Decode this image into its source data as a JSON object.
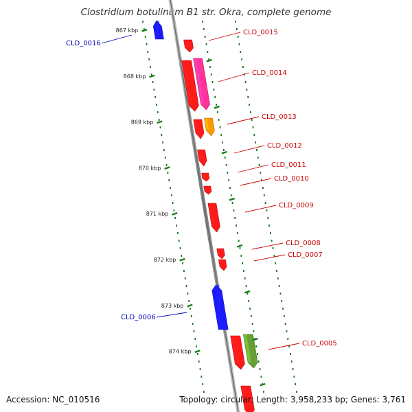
{
  "title": "Clostridium botulinum B1 str. Okra, complete genome",
  "footer": {
    "accession": "Accession: NC_010516",
    "topology": "Topology: circular; Length: 3,958,233 bp; Genes: 3,761"
  },
  "colors": {
    "backbone": "#8a8a8a",
    "tick": "#1a7a1a",
    "label_forward": "#cc0000",
    "label_reverse": "#0000bb"
  },
  "kbp_ticks": [
    "867 kbp",
    "868 kbp",
    "869 kbp",
    "870 kbp",
    "871 kbp",
    "872 kbp",
    "873 kbp",
    "874 kbp"
  ],
  "genes": [
    {
      "id": "CLD_0016",
      "strand": "reverse",
      "color": "#1a1aff"
    },
    {
      "id": "CLD_0015",
      "strand": "forward",
      "color": "#ff1a1a"
    },
    {
      "id": "CLD_0014",
      "strand": "forward",
      "color": "#ff1a1a"
    },
    {
      "id": "CLD_0014-pink",
      "strand": "forward",
      "color": "#ff3399"
    },
    {
      "id": "CLD_0013",
      "strand": "forward",
      "color": "#ff1a1a"
    },
    {
      "id": "CLD_0013-orange",
      "strand": "forward",
      "color": "#ff9900"
    },
    {
      "id": "CLD_0012",
      "strand": "forward",
      "color": "#ff1a1a"
    },
    {
      "id": "CLD_0011",
      "strand": "forward",
      "color": "#ff1a1a"
    },
    {
      "id": "CLD_0010",
      "strand": "forward",
      "color": "#ff1a1a"
    },
    {
      "id": "CLD_0009",
      "strand": "forward",
      "color": "#ff1a1a"
    },
    {
      "id": "CLD_0008",
      "strand": "forward",
      "color": "#ff1a1a"
    },
    {
      "id": "CLD_0007",
      "strand": "forward",
      "color": "#ff1a1a"
    },
    {
      "id": "CLD_0006",
      "strand": "reverse",
      "color": "#1a1aff"
    },
    {
      "id": "CLD_0005",
      "strand": "forward",
      "color": "#ff1a1a"
    },
    {
      "id": "CLD_0005-green",
      "strand": "forward",
      "color": "#66a032"
    },
    {
      "id": "CLD_0004",
      "strand": "forward",
      "color": "#ff1a1a"
    }
  ],
  "labels": [
    "CLD_0016",
    "CLD_0015",
    "CLD_0014",
    "CLD_0013",
    "CLD_0012",
    "CLD_0011",
    "CLD_0010",
    "CLD_0009",
    "CLD_0008",
    "CLD_0007",
    "CLD_0006",
    "CLD_0005"
  ]
}
